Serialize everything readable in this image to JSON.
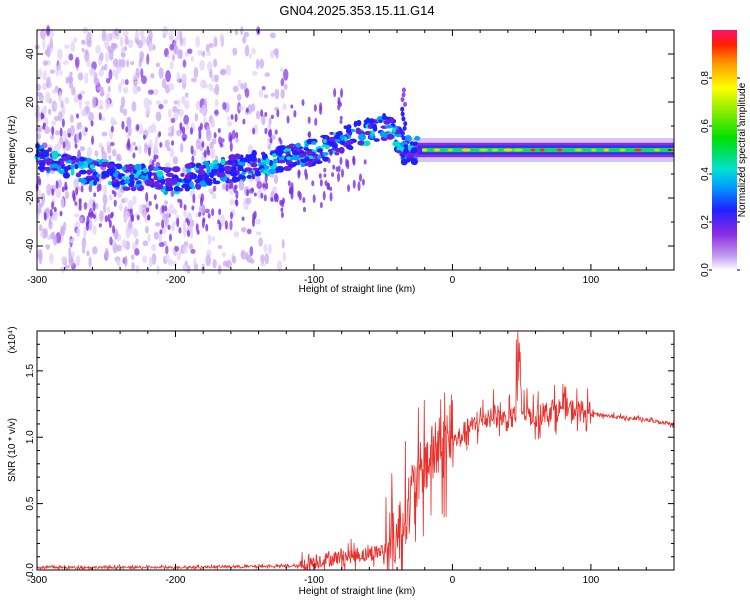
{
  "figure_title": "GN04.2025.353.15.11.G14",
  "chart_data": [
    {
      "type": "heatmap",
      "title": "GN04.2025.353.15.11.G14",
      "xlabel": "Height of straight line (km)",
      "ylabel": "Frequency (Hz)",
      "xlim": [
        -300,
        160
      ],
      "ylim": [
        -50,
        50
      ],
      "x_ticks": [
        -300,
        -200,
        -100,
        0,
        100
      ],
      "x_tick_labels": [
        "-300",
        "-200",
        "-100",
        "0",
        "100"
      ],
      "y_ticks": [
        -40,
        -20,
        0,
        20,
        40
      ],
      "y_tick_labels": [
        "-40",
        "-20",
        "0",
        "20",
        "40"
      ],
      "colorbar": {
        "label": "Normalized spectral amplitude",
        "range": [
          0,
          1
        ],
        "ticks": [
          0.0,
          0.2,
          0.4,
          0.6,
          0.8
        ],
        "tick_labels": [
          "0.0",
          "0.2",
          "0.4",
          "0.6",
          "0.8"
        ]
      },
      "ridge": {
        "x": [
          -300,
          -280,
          -260,
          -240,
          -220,
          -200,
          -180,
          -160,
          -140,
          -120,
          -100,
          -80,
          -60,
          -45,
          -35,
          -25,
          0,
          50,
          100,
          160
        ],
        "frequency": [
          -3,
          -6,
          -9,
          -11,
          -12,
          -13,
          -10,
          -8,
          -6,
          -3,
          -1,
          4,
          8,
          10,
          0,
          0,
          0,
          0,
          0,
          0
        ]
      }
    },
    {
      "type": "line",
      "title": "",
      "xlabel": "Height of straight line (km)",
      "ylabel": "SNR (10 * v/v)",
      "y_scale_label": "(x10⁴)",
      "xlim": [
        -300,
        160
      ],
      "ylim": [
        0,
        1.8
      ],
      "x_ticks": [
        -300,
        -200,
        -100,
        0,
        100
      ],
      "x_tick_labels": [
        "-300",
        "-200",
        "-100",
        "0",
        "100"
      ],
      "y_ticks": [
        0.0,
        0.5,
        1.0,
        1.5
      ],
      "y_tick_labels": [
        "0.0",
        "0.5",
        "1.0",
        "1.5"
      ],
      "series": [
        {
          "name": "SNR",
          "color": "#e8312c",
          "x": [
            -300,
            -200,
            -110,
            -100,
            -80,
            -60,
            -50,
            -40,
            -30,
            -20,
            -10,
            0,
            10,
            20,
            30,
            40,
            50,
            60,
            70,
            80,
            90,
            100,
            120,
            140,
            160
          ],
          "y": [
            0.02,
            0.02,
            0.03,
            0.06,
            0.1,
            0.12,
            0.15,
            0.25,
            0.55,
            0.8,
            0.9,
            0.95,
            1.05,
            1.12,
            1.18,
            1.12,
            1.2,
            1.15,
            1.2,
            1.22,
            1.2,
            1.18,
            1.15,
            1.13,
            1.1
          ]
        }
      ]
    }
  ]
}
